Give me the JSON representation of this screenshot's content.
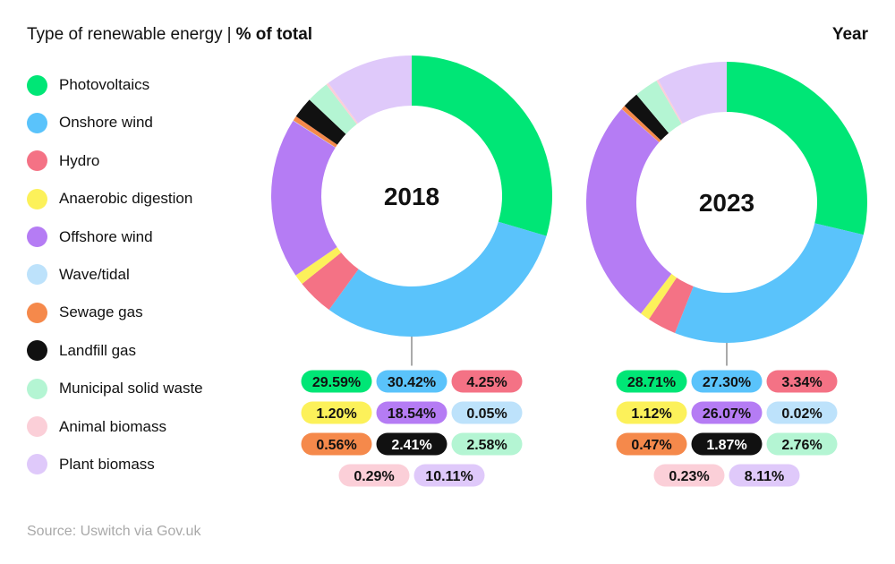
{
  "header": {
    "title": "Type of renewable energy",
    "separator": "|",
    "title_bold": "% of total",
    "year_heading": "Year"
  },
  "source": "Source: Uswitch via Gov.uk",
  "colors": {
    "Photovoltaics": "#00e676",
    "Onshore wind": "#5ac3fb",
    "Hydro": "#f47285",
    "Anaerobic digestion": "#fcf15a",
    "Offshore wind": "#b57cf4",
    "Wave/tidal": "#bde2fb",
    "Sewage gas": "#f5894b",
    "Landfill gas": "#111111",
    "Municipal solid waste": "#b4f5d3",
    "Animal biomass": "#fbcfd8",
    "Plant biomass": "#dfc9fa"
  },
  "chart_data": [
    {
      "type": "pie",
      "title": "2018",
      "categories": [
        "Photovoltaics",
        "Onshore wind",
        "Hydro",
        "Anaerobic digestion",
        "Offshore wind",
        "Wave/tidal",
        "Sewage gas",
        "Landfill gas",
        "Municipal solid waste",
        "Animal biomass",
        "Plant biomass"
      ],
      "values": [
        29.59,
        30.42,
        4.25,
        1.2,
        18.54,
        0.05,
        0.56,
        2.41,
        2.58,
        0.29,
        10.11
      ],
      "labels": [
        "29.59%",
        "30.42%",
        "4.25%",
        "1.20%",
        "18.54%",
        "0.05%",
        "0.56%",
        "2.41%",
        "2.58%",
        "0.29%",
        "10.11%"
      ],
      "legend": "left"
    },
    {
      "type": "pie",
      "title": "2023",
      "categories": [
        "Photovoltaics",
        "Onshore wind",
        "Hydro",
        "Anaerobic digestion",
        "Offshore wind",
        "Wave/tidal",
        "Sewage gas",
        "Landfill gas",
        "Municipal solid waste",
        "Animal biomass",
        "Plant biomass"
      ],
      "values": [
        28.71,
        27.3,
        3.34,
        1.12,
        26.07,
        0.02,
        0.47,
        1.87,
        2.76,
        0.23,
        8.11
      ],
      "labels": [
        "28.71%",
        "27.30%",
        "3.34%",
        "1.12%",
        "26.07%",
        "0.02%",
        "0.47%",
        "1.87%",
        "2.76%",
        "0.23%",
        "8.11%"
      ],
      "legend": "left"
    }
  ]
}
